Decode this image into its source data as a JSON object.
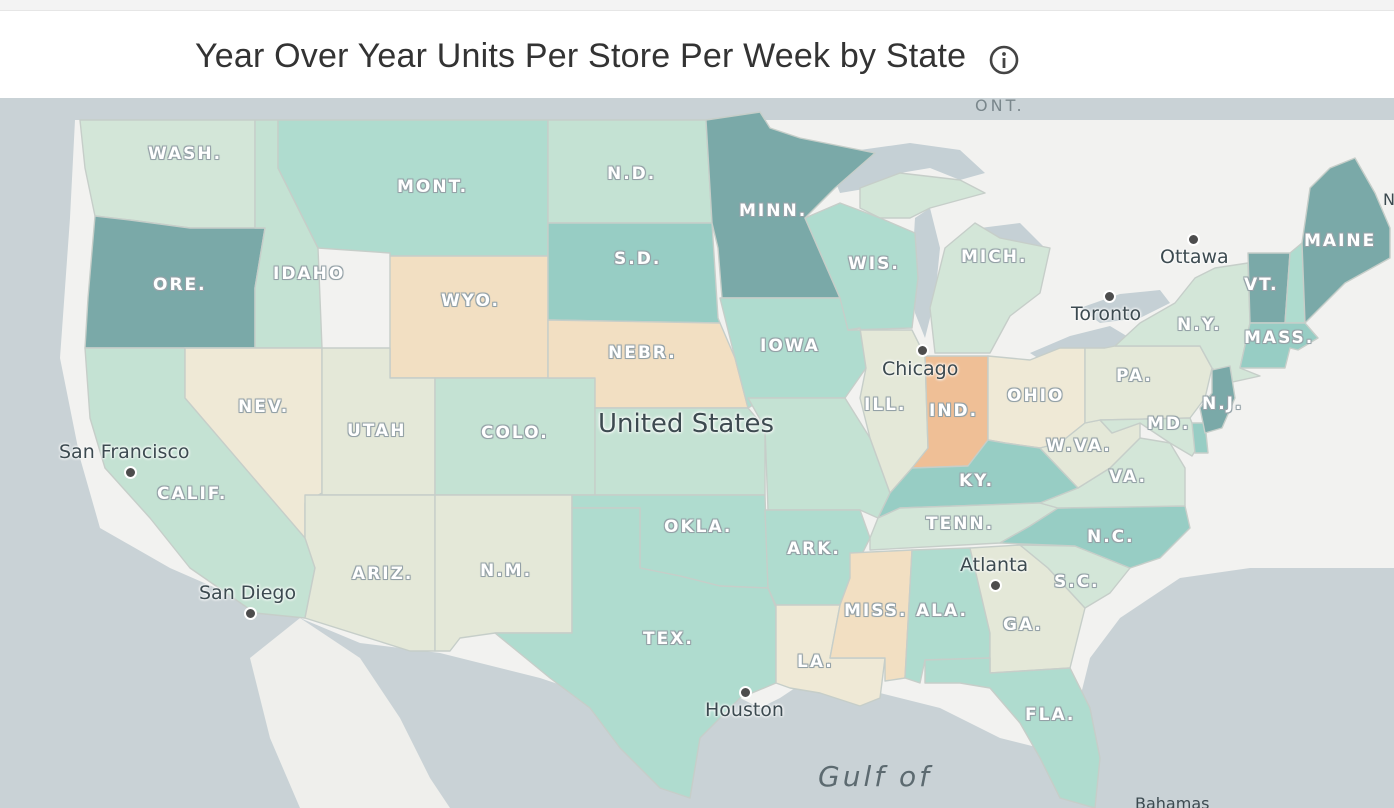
{
  "header": {
    "title": "Year Over Year Units Per Store Per Week by State",
    "info_icon": "info-circle-icon"
  },
  "map": {
    "country_label": "United States",
    "water_label": "Gulf of",
    "province_label": "ONT.",
    "bottom_cut_label": "Bahamas",
    "edge_label": "N",
    "colors": {
      "dark_teal": "#7aa9a8",
      "teal": "#97cdc4",
      "light_teal": "#afdccf",
      "pale_green": "#c4e2d3",
      "very_pale": "#d3e6d8",
      "neutral": "#e4e8d8",
      "beige": "#efe9d6",
      "tan": "#f2dfc2",
      "orange": "#efbf96"
    },
    "states": [
      {
        "id": "WA",
        "label": "WASH.",
        "tier": "very_pale"
      },
      {
        "id": "OR",
        "label": "ORE.",
        "tier": "dark_teal"
      },
      {
        "id": "CA",
        "label": "CALIF.",
        "tier": "pale_green"
      },
      {
        "id": "ID",
        "label": "IDAHO",
        "tier": "pale_green"
      },
      {
        "id": "NV",
        "label": "NEV.",
        "tier": "beige"
      },
      {
        "id": "MT",
        "label": "MONT.",
        "tier": "light_teal"
      },
      {
        "id": "WY",
        "label": "WYO.",
        "tier": "tan"
      },
      {
        "id": "UT",
        "label": "UTAH",
        "tier": "neutral"
      },
      {
        "id": "AZ",
        "label": "ARIZ.",
        "tier": "neutral"
      },
      {
        "id": "CO",
        "label": "COLO.",
        "tier": "pale_green"
      },
      {
        "id": "NM",
        "label": "N.M.",
        "tier": "neutral"
      },
      {
        "id": "ND",
        "label": "N.D.",
        "tier": "pale_green"
      },
      {
        "id": "SD",
        "label": "S.D.",
        "tier": "teal"
      },
      {
        "id": "NE",
        "label": "NEBR.",
        "tier": "tan"
      },
      {
        "id": "KS",
        "label": "",
        "tier": "pale_green"
      },
      {
        "id": "OK",
        "label": "OKLA.",
        "tier": "light_teal"
      },
      {
        "id": "TX",
        "label": "TEX.",
        "tier": "light_teal"
      },
      {
        "id": "MN",
        "label": "MINN.",
        "tier": "dark_teal"
      },
      {
        "id": "IA",
        "label": "IOWA",
        "tier": "light_teal"
      },
      {
        "id": "MO",
        "label": "",
        "tier": "pale_green"
      },
      {
        "id": "AR",
        "label": "ARK.",
        "tier": "light_teal"
      },
      {
        "id": "LA",
        "label": "LA.",
        "tier": "beige"
      },
      {
        "id": "WI",
        "label": "WIS.",
        "tier": "light_teal"
      },
      {
        "id": "IL",
        "label": "ILL.",
        "tier": "neutral"
      },
      {
        "id": "MI",
        "label": "MICH.",
        "tier": "very_pale"
      },
      {
        "id": "IN",
        "label": "IND.",
        "tier": "orange"
      },
      {
        "id": "OH",
        "label": "OHIO",
        "tier": "beige"
      },
      {
        "id": "KY",
        "label": "KY.",
        "tier": "teal"
      },
      {
        "id": "TN",
        "label": "TENN.",
        "tier": "very_pale"
      },
      {
        "id": "MS",
        "label": "MISS.",
        "tier": "tan"
      },
      {
        "id": "AL",
        "label": "ALA.",
        "tier": "light_teal"
      },
      {
        "id": "GA",
        "label": "GA.",
        "tier": "neutral"
      },
      {
        "id": "FL",
        "label": "FLA.",
        "tier": "light_teal"
      },
      {
        "id": "SC",
        "label": "S.C.",
        "tier": "very_pale"
      },
      {
        "id": "NC",
        "label": "N.C.",
        "tier": "teal"
      },
      {
        "id": "VA",
        "label": "VA.",
        "tier": "very_pale"
      },
      {
        "id": "WV",
        "label": "W.VA.",
        "tier": "neutral"
      },
      {
        "id": "PA",
        "label": "PA.",
        "tier": "neutral"
      },
      {
        "id": "NY",
        "label": "N.Y.",
        "tier": "very_pale"
      },
      {
        "id": "MD",
        "label": "MD.",
        "tier": "very_pale"
      },
      {
        "id": "DE",
        "label": "",
        "tier": "teal"
      },
      {
        "id": "NJ",
        "label": "N.J.",
        "tier": "dark_teal"
      },
      {
        "id": "VT",
        "label": "VT.",
        "tier": "dark_teal"
      },
      {
        "id": "NH",
        "label": "",
        "tier": "light_teal"
      },
      {
        "id": "MA",
        "label": "MASS.",
        "tier": "teal"
      },
      {
        "id": "ME",
        "label": "MAINE",
        "tier": "dark_teal"
      }
    ],
    "cities": [
      {
        "id": "san-francisco",
        "name": "San Francisco"
      },
      {
        "id": "san-diego",
        "name": "San Diego"
      },
      {
        "id": "houston",
        "name": "Houston"
      },
      {
        "id": "chicago",
        "name": "Chicago"
      },
      {
        "id": "atlanta",
        "name": "Atlanta"
      },
      {
        "id": "toronto",
        "name": "Toronto"
      },
      {
        "id": "ottawa",
        "name": "Ottawa"
      }
    ]
  }
}
